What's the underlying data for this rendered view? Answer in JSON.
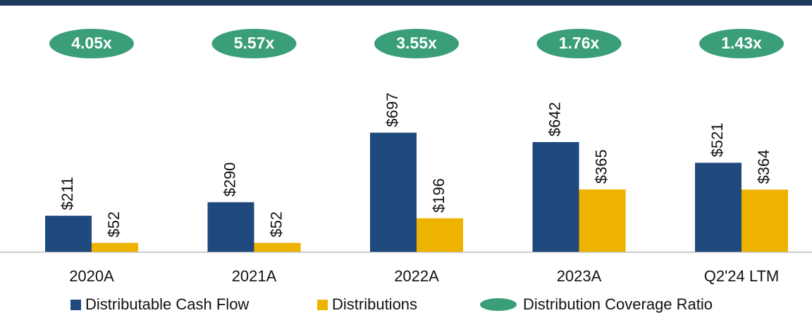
{
  "chart_data": {
    "type": "bar",
    "categories": [
      "2020A",
      "2021A",
      "2022A",
      "2023A",
      "Q2'24 LTM"
    ],
    "series": [
      {
        "name": "Distributable Cash Flow",
        "color": "#1f497d",
        "values": [
          211,
          290,
          697,
          642,
          521
        ],
        "value_labels": [
          "$211",
          "$290",
          "$697",
          "$642",
          "$521"
        ]
      },
      {
        "name": "Distributions",
        "color": "#eeb300",
        "values": [
          52,
          52,
          196,
          365,
          364
        ],
        "value_labels": [
          "$52",
          "$52",
          "$196",
          "$365",
          "$364"
        ]
      },
      {
        "name": "Distribution Coverage Ratio",
        "color": "#3a9e78",
        "values": [
          4.05,
          5.57,
          3.55,
          1.76,
          1.43
        ],
        "value_labels": [
          "4.05x",
          "5.57x",
          "3.55x",
          "1.76x",
          "1.43x"
        ]
      }
    ]
  }
}
